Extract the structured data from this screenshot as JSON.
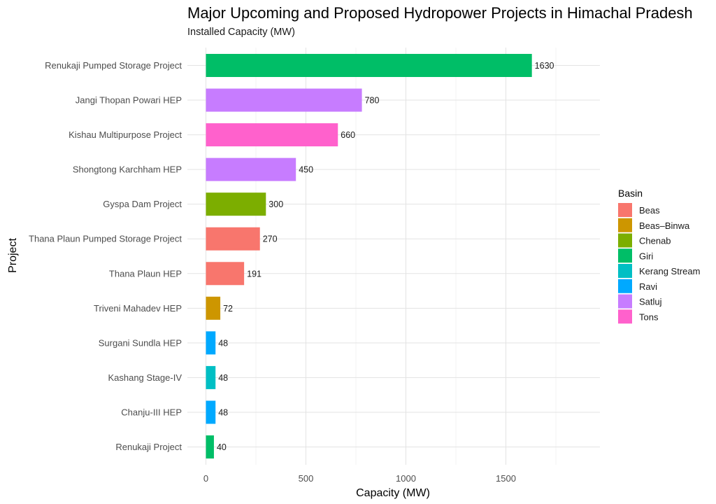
{
  "chart_data": {
    "type": "bar",
    "orientation": "horizontal",
    "title": "Major Upcoming and Proposed Hydropower Projects in Himachal Pradesh",
    "subtitle": "Installed Capacity (MW)",
    "xlabel": "Capacity (MW)",
    "ylabel": "Project",
    "xlim": [
      0,
      1800
    ],
    "x_ticks": [
      0,
      500,
      1000,
      1500
    ],
    "grid": true,
    "legend": {
      "title": "Basin",
      "position": "right",
      "items": [
        {
          "name": "Beas",
          "color": "#F8766D"
        },
        {
          "name": "Beas–Binwa",
          "color": "#CD9600"
        },
        {
          "name": "Chenab",
          "color": "#7CAE00"
        },
        {
          "name": "Giri",
          "color": "#00BE67"
        },
        {
          "name": "Kerang Stream",
          "color": "#00BFC4"
        },
        {
          "name": "Ravi",
          "color": "#00A9FF"
        },
        {
          "name": "Satluj",
          "color": "#C77CFF"
        },
        {
          "name": "Tons",
          "color": "#FF61CC"
        }
      ]
    },
    "bars": [
      {
        "project": "Renukaji Pumped Storage Project",
        "value": 1630,
        "label": "1630",
        "basin": "Giri"
      },
      {
        "project": "Jangi Thopan Powari HEP",
        "value": 780,
        "label": "780",
        "basin": "Satluj"
      },
      {
        "project": "Kishau Multipurpose Project",
        "value": 660,
        "label": "660",
        "basin": "Tons"
      },
      {
        "project": "Shongtong Karchham HEP",
        "value": 450,
        "label": "450",
        "basin": "Satluj"
      },
      {
        "project": "Gyspa Dam Project",
        "value": 300,
        "label": "300",
        "basin": "Chenab"
      },
      {
        "project": "Thana Plaun Pumped Storage Project",
        "value": 270,
        "label": "270",
        "basin": "Beas"
      },
      {
        "project": "Thana Plaun HEP",
        "value": 191,
        "label": "191",
        "basin": "Beas"
      },
      {
        "project": "Triveni Mahadev HEP",
        "value": 72,
        "label": "72",
        "basin": "Beas–Binwa"
      },
      {
        "project": "Surgani Sundla HEP",
        "value": 48,
        "label": "48",
        "basin": "Ravi"
      },
      {
        "project": "Kashang Stage-IV",
        "value": 48,
        "label": "48",
        "basin": "Kerang Stream"
      },
      {
        "project": "Chanju-III HEP",
        "value": 48,
        "label": "48",
        "basin": "Ravi"
      },
      {
        "project": "Renukaji Project",
        "value": 40,
        "label": "40",
        "basin": "Giri"
      }
    ]
  }
}
